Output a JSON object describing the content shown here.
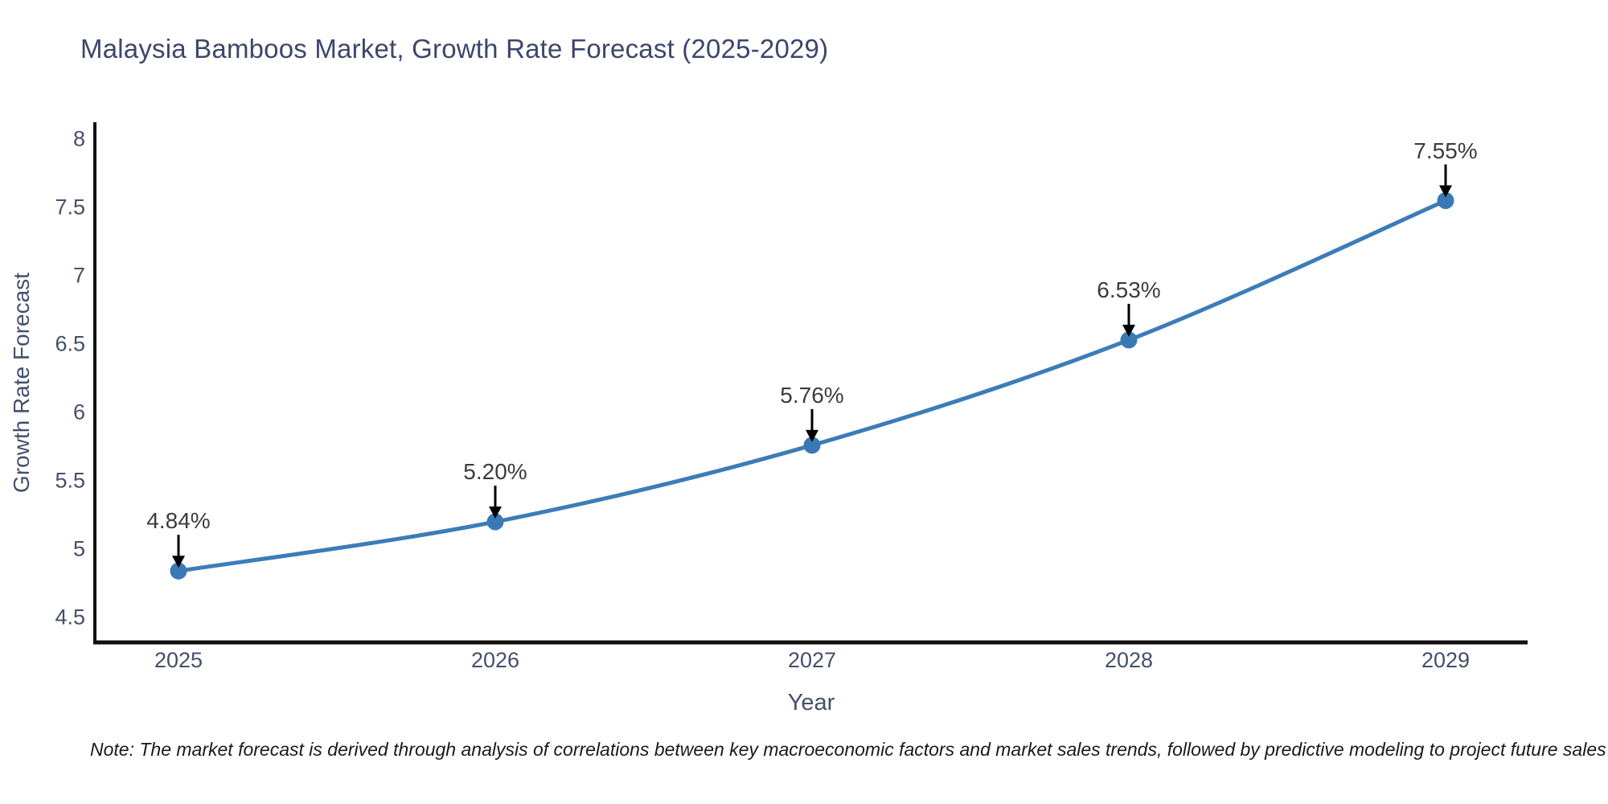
{
  "title": "Malaysia Bamboos Market, Growth Rate Forecast (2025-2029)",
  "note": "Note: The market forecast is derived through analysis of correlations between key macroeconomic factors and market sales trends, followed by predictive modeling to project future sales",
  "chart_data": {
    "type": "line",
    "title": "Malaysia Bamboos Market, Growth Rate Forecast (2025-2029)",
    "x": [
      "2025",
      "2026",
      "2027",
      "2028",
      "2029"
    ],
    "series": [
      {
        "name": "Growth Rate Forecast",
        "values": [
          4.84,
          5.2,
          5.76,
          6.53,
          7.55
        ]
      }
    ],
    "point_labels": [
      "4.84%",
      "5.20%",
      "5.76%",
      "6.53%",
      "7.55%"
    ],
    "xlabel": "Year",
    "ylabel": "Growth Rate Forecast",
    "ylim": [
      4.5,
      8
    ],
    "yticks": [
      8,
      7.5,
      7,
      6.5,
      6,
      5.5,
      5,
      4.5
    ],
    "grid": false,
    "legend": false,
    "line_color": "#3c7cb8",
    "marker_color": "#3a79b4",
    "annotation_arrow_color": "#000000"
  },
  "colors": {
    "title": "#3d466b",
    "tick": "#44506b",
    "axis": "#111111",
    "annotation_text": "#3c3c3c",
    "note": "#1a1a1a",
    "background": "#ffffff"
  }
}
